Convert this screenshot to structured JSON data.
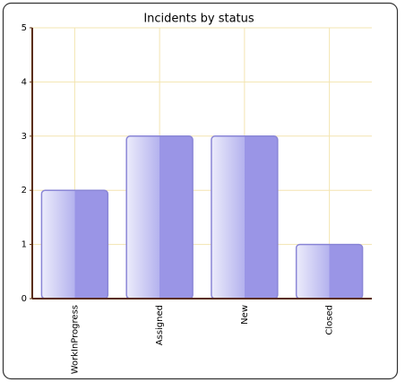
{
  "chart_data": {
    "type": "bar",
    "title": "Incidents by status",
    "categories": [
      "WorkInProgress",
      "Assigned",
      "New",
      "Closed"
    ],
    "values": [
      2,
      3,
      3,
      1
    ],
    "color": "#9a95e6",
    "ylim": [
      0,
      5
    ],
    "yticks": [
      0,
      1,
      2,
      3,
      4,
      5
    ],
    "grid": true
  }
}
